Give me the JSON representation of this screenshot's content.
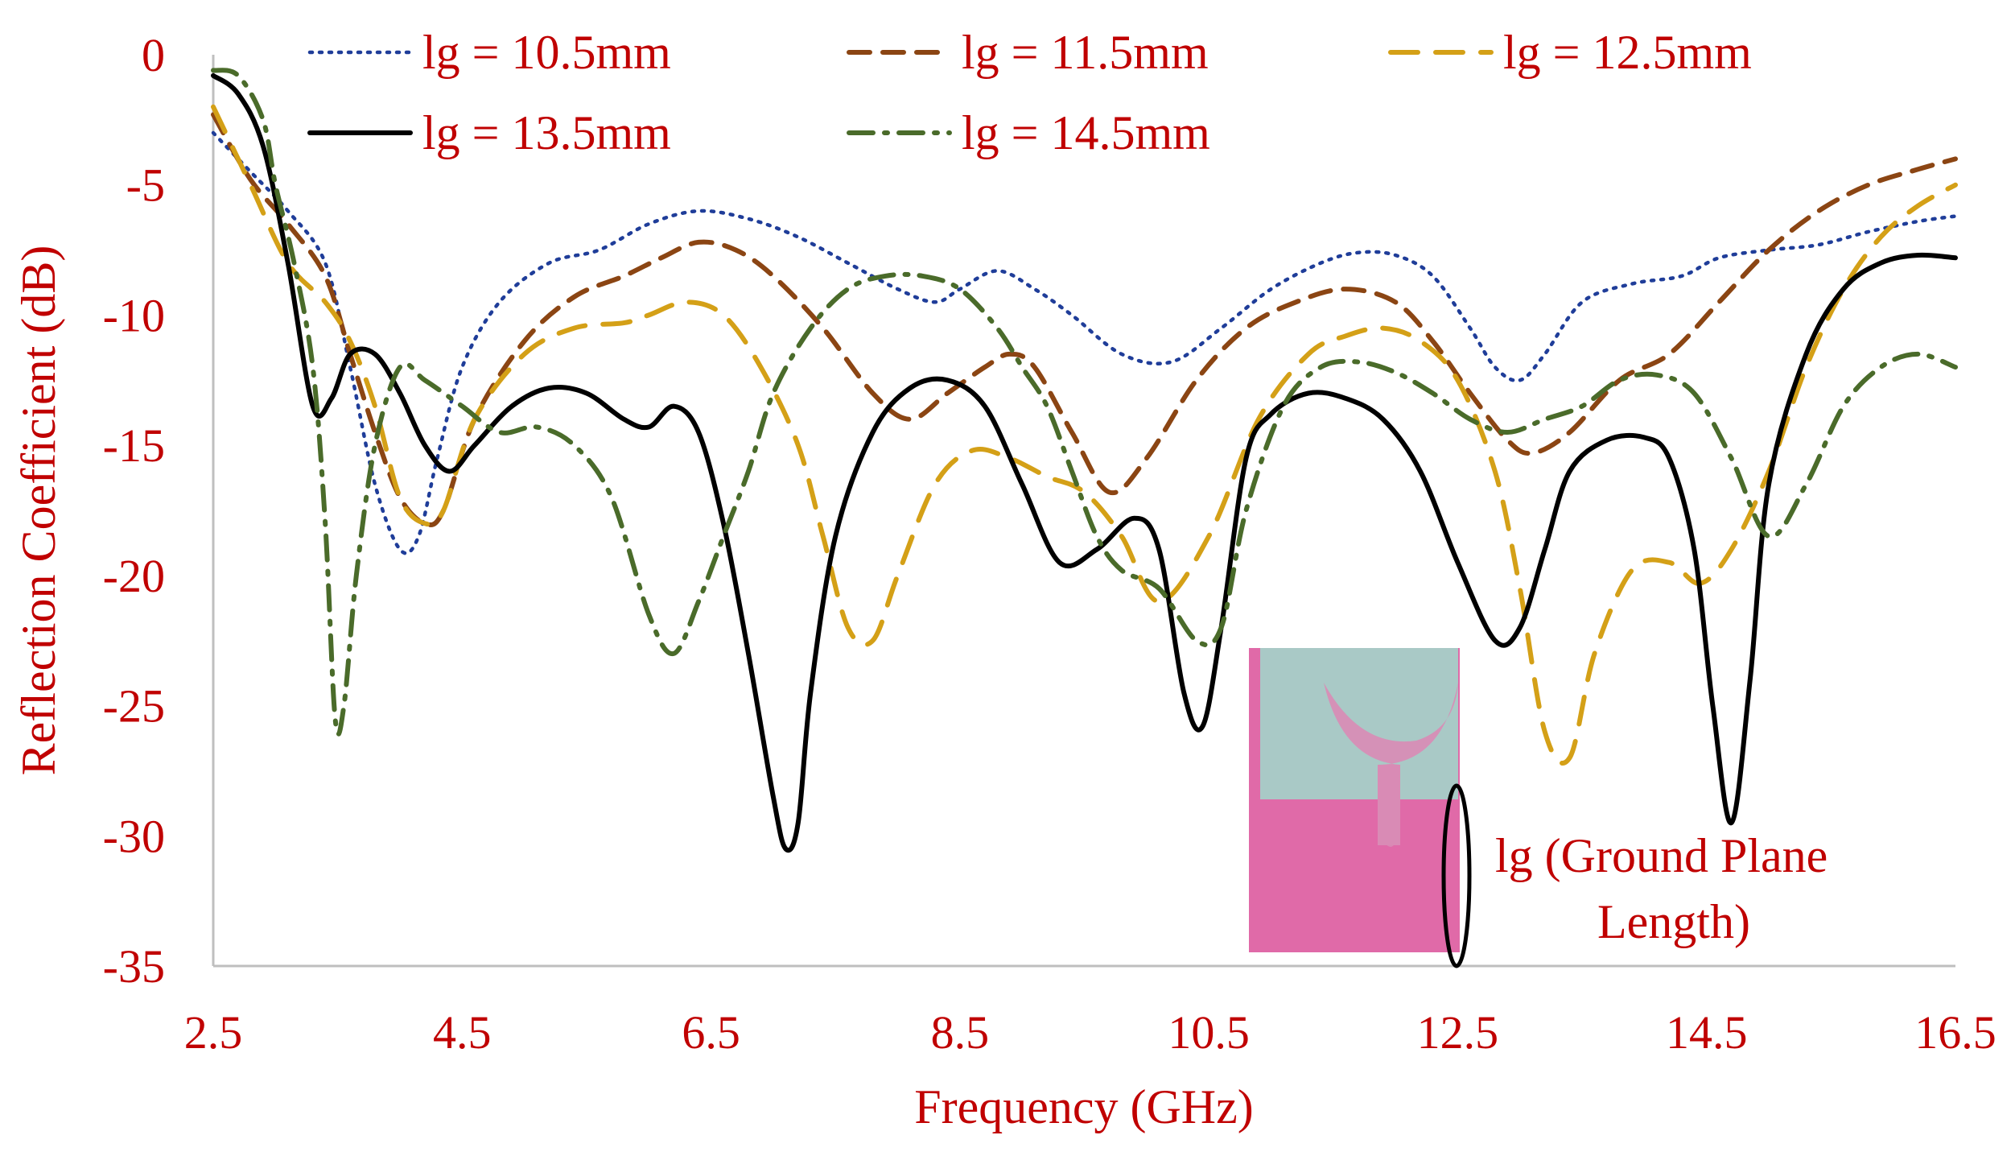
{
  "chart_data": {
    "type": "line",
    "title": "",
    "xlabel": "Frequency (GHz)",
    "ylabel": "Reflection Coefficient (dB)",
    "xlim": [
      2.5,
      16.5
    ],
    "ylim": [
      -35,
      0
    ],
    "xticks": [
      "2.5",
      "4.5",
      "6.5",
      "8.5",
      "10.5",
      "12.5",
      "14.5",
      "16.5"
    ],
    "yticks": [
      "0",
      "-5",
      "-10",
      "-15",
      "-20",
      "-25",
      "-30",
      "-35"
    ],
    "grid": false,
    "legend_position": "top",
    "series": [
      {
        "name": "lg = 10.5mm",
        "color": "#1f3d99",
        "dash": "dotted",
        "x": [
          2.5,
          2.8,
          3.1,
          3.4,
          3.6,
          3.8,
          4.0,
          4.15,
          4.3,
          4.5,
          4.8,
          5.2,
          5.6,
          6.0,
          6.4,
          6.8,
          7.2,
          7.6,
          8.0,
          8.3,
          8.5,
          8.8,
          9.1,
          9.4,
          9.8,
          10.2,
          10.6,
          11.0,
          11.4,
          11.7,
          12.0,
          12.3,
          12.6,
          12.8,
          13.0,
          13.2,
          13.5,
          13.9,
          14.3,
          14.6,
          15.0,
          15.4,
          15.8,
          16.2,
          16.5
        ],
        "y": [
          -3.0,
          -4.5,
          -6.0,
          -8.0,
          -12.0,
          -16.5,
          -19.0,
          -18.5,
          -15.5,
          -12.0,
          -9.5,
          -8.0,
          -7.5,
          -6.5,
          -6.0,
          -6.3,
          -7.0,
          -8.0,
          -9.0,
          -9.5,
          -9.0,
          -8.3,
          -9.0,
          -10.0,
          -11.5,
          -11.8,
          -10.5,
          -9.0,
          -8.0,
          -7.6,
          -7.7,
          -8.5,
          -10.5,
          -12.0,
          -12.5,
          -11.5,
          -9.5,
          -8.8,
          -8.5,
          -7.8,
          -7.5,
          -7.3,
          -6.8,
          -6.4,
          -6.2
        ]
      },
      {
        "name": "lg = 11.5mm",
        "color": "#8b4513",
        "dash": "dashed",
        "x": [
          2.5,
          2.8,
          3.1,
          3.4,
          3.6,
          3.8,
          4.0,
          4.2,
          4.35,
          4.6,
          5.0,
          5.4,
          5.8,
          6.1,
          6.4,
          6.7,
          7.0,
          7.4,
          7.8,
          8.1,
          8.4,
          8.7,
          8.9,
          9.1,
          9.4,
          9.7,
          10.0,
          10.4,
          10.8,
          11.2,
          11.6,
          12.0,
          12.3,
          12.6,
          12.9,
          13.1,
          13.4,
          13.8,
          14.2,
          14.6,
          15.0,
          15.4,
          15.8,
          16.2,
          16.5
        ],
        "y": [
          -2.3,
          -4.8,
          -6.5,
          -8.5,
          -11.5,
          -14.5,
          -17.0,
          -18.0,
          -17.5,
          -14.0,
          -11.0,
          -9.3,
          -8.5,
          -7.8,
          -7.2,
          -7.5,
          -8.5,
          -10.5,
          -13.0,
          -14.0,
          -13.0,
          -12.0,
          -11.5,
          -12.0,
          -14.5,
          -16.8,
          -15.5,
          -12.5,
          -10.5,
          -9.5,
          -9.0,
          -9.5,
          -11.0,
          -13.0,
          -14.8,
          -15.3,
          -14.5,
          -12.5,
          -11.5,
          -9.5,
          -7.5,
          -6.0,
          -5.0,
          -4.4,
          -4.0
        ]
      },
      {
        "name": "lg = 12.5mm",
        "color": "#d4a017",
        "dash": "longdash",
        "x": [
          2.5,
          2.8,
          3.1,
          3.4,
          3.6,
          3.8,
          4.0,
          4.2,
          4.35,
          4.6,
          5.0,
          5.4,
          5.8,
          6.0,
          6.3,
          6.6,
          6.9,
          7.2,
          7.4,
          7.6,
          7.8,
          8.0,
          8.3,
          8.6,
          8.9,
          9.2,
          9.5,
          9.8,
          10.1,
          10.5,
          10.9,
          11.3,
          11.6,
          11.9,
          12.2,
          12.5,
          12.8,
          13.0,
          13.2,
          13.4,
          13.6,
          13.9,
          14.2,
          14.45,
          14.7,
          15.0,
          15.3,
          15.6,
          15.9,
          16.2,
          16.5
        ],
        "y": [
          -2.0,
          -5.0,
          -8.0,
          -9.5,
          -11.0,
          -13.5,
          -17.0,
          -18.0,
          -17.5,
          -14.0,
          -11.5,
          -10.5,
          -10.3,
          -10.0,
          -9.5,
          -10.0,
          -12.0,
          -15.0,
          -18.5,
          -22.0,
          -22.5,
          -20.0,
          -16.5,
          -15.2,
          -15.5,
          -16.2,
          -16.8,
          -18.5,
          -21.0,
          -18.5,
          -14.0,
          -11.5,
          -10.8,
          -10.5,
          -11.0,
          -12.5,
          -16.0,
          -20.5,
          -26.0,
          -27.0,
          -23.0,
          -19.8,
          -19.5,
          -20.3,
          -19.0,
          -16.0,
          -12.0,
          -9.0,
          -7.0,
          -5.8,
          -5.0
        ]
      },
      {
        "name": "lg = 13.5mm",
        "color": "#000000",
        "dash": "solid",
        "x": [
          2.5,
          2.7,
          2.9,
          3.1,
          3.3,
          3.45,
          3.6,
          3.8,
          4.0,
          4.2,
          4.4,
          4.6,
          4.9,
          5.2,
          5.5,
          5.8,
          6.0,
          6.2,
          6.4,
          6.6,
          6.8,
          7.0,
          7.1,
          7.2,
          7.3,
          7.5,
          7.8,
          8.1,
          8.4,
          8.7,
          9.0,
          9.3,
          9.6,
          9.9,
          10.1,
          10.3,
          10.45,
          10.6,
          10.8,
          11.0,
          11.3,
          11.6,
          11.9,
          12.2,
          12.5,
          12.8,
          13.0,
          13.2,
          13.4,
          13.7,
          14.0,
          14.2,
          14.4,
          14.55,
          14.7,
          14.85,
          15.0,
          15.3,
          15.6,
          15.9,
          16.2,
          16.5
        ],
        "y": [
          -0.8,
          -1.5,
          -3.5,
          -8.0,
          -13.5,
          -13.2,
          -11.5,
          -11.5,
          -13.0,
          -15.0,
          -16.0,
          -15.0,
          -13.5,
          -12.8,
          -13.0,
          -14.0,
          -14.3,
          -13.5,
          -14.5,
          -18.0,
          -23.0,
          -28.5,
          -30.5,
          -29.5,
          -24.5,
          -18.5,
          -14.5,
          -12.8,
          -12.5,
          -13.5,
          -16.5,
          -19.5,
          -19.0,
          -17.8,
          -19.0,
          -24.5,
          -25.8,
          -22.0,
          -15.5,
          -13.8,
          -13.0,
          -13.2,
          -14.0,
          -16.0,
          -19.5,
          -22.5,
          -22.0,
          -19.0,
          -16.0,
          -14.8,
          -14.7,
          -15.5,
          -19.0,
          -25.0,
          -29.5,
          -24.0,
          -16.5,
          -11.5,
          -9.0,
          -8.0,
          -7.7,
          -7.8
        ]
      },
      {
        "name": "lg = 14.5mm",
        "color": "#4a6b2a",
        "dash": "dashdot",
        "x": [
          2.5,
          2.7,
          2.9,
          3.0,
          3.15,
          3.3,
          3.4,
          3.48,
          3.55,
          3.65,
          3.8,
          4.0,
          4.2,
          4.5,
          4.8,
          5.1,
          5.4,
          5.7,
          6.0,
          6.2,
          6.4,
          6.6,
          6.8,
          7.0,
          7.3,
          7.6,
          7.9,
          8.2,
          8.5,
          8.8,
          9.0,
          9.2,
          9.4,
          9.6,
          9.8,
          10.1,
          10.4,
          10.6,
          10.8,
          11.1,
          11.4,
          11.7,
          12.0,
          12.3,
          12.6,
          12.9,
          13.2,
          13.5,
          13.8,
          14.1,
          14.4,
          14.7,
          15.0,
          15.3,
          15.6,
          15.9,
          16.2,
          16.5
        ],
        "y": [
          -0.6,
          -0.8,
          -2.5,
          -5.0,
          -8.0,
          -12.0,
          -18.0,
          -25.5,
          -25.0,
          -20.0,
          -15.0,
          -12.0,
          -12.5,
          -13.5,
          -14.5,
          -14.3,
          -15.0,
          -17.0,
          -21.5,
          -23.0,
          -21.0,
          -18.5,
          -16.0,
          -13.0,
          -10.5,
          -9.0,
          -8.5,
          -8.5,
          -9.0,
          -10.5,
          -12.0,
          -13.5,
          -16.0,
          -18.5,
          -19.8,
          -20.5,
          -22.5,
          -22.0,
          -17.5,
          -13.5,
          -12.0,
          -11.8,
          -12.2,
          -13.0,
          -14.0,
          -14.5,
          -14.0,
          -13.5,
          -12.5,
          -12.3,
          -13.0,
          -15.5,
          -18.5,
          -16.5,
          -13.5,
          -12.0,
          -11.5,
          -12.0
        ]
      }
    ],
    "annotations": {
      "line1": "lg (Ground Plane",
      "line2": "Length)"
    }
  }
}
